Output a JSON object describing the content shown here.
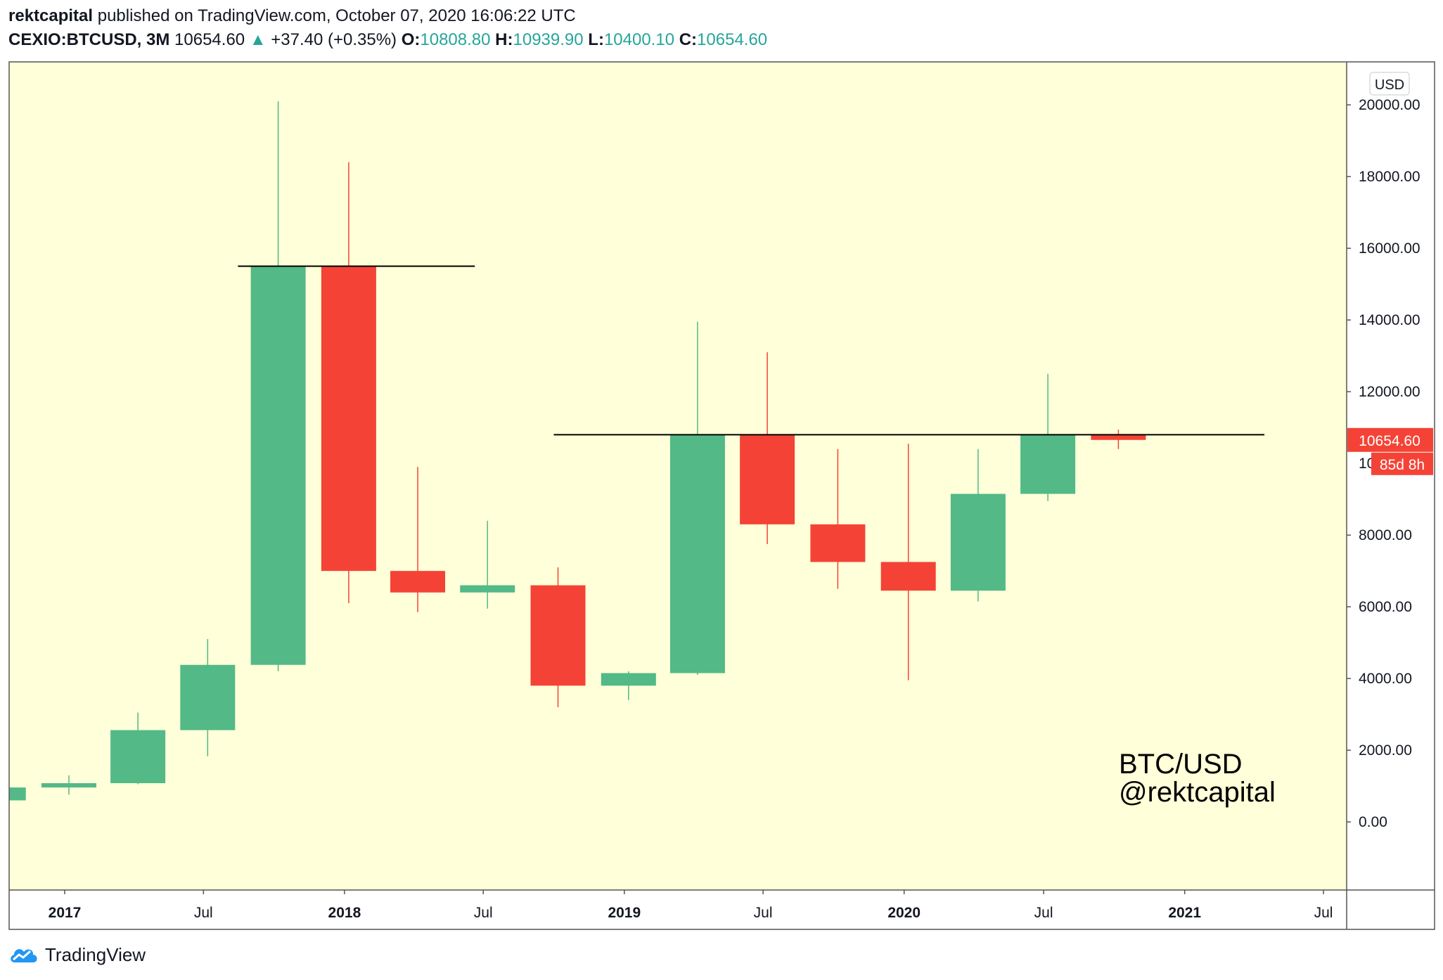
{
  "header": {
    "author": "rektcapital",
    "published_text": "published on TradingView.com, October 07, 2020 16:06:22 UTC",
    "symbol": "CEXIO:BTCUSD, 3M",
    "last": "10654.60",
    "change": "+37.40 (+0.35%)",
    "o_label": "O:",
    "o_value": "10808.80",
    "h_label": "H:",
    "h_value": "10939.90",
    "l_label": "L:",
    "l_value": "10400.10",
    "c_label": "C:",
    "c_value": "10654.60"
  },
  "footer": {
    "brand": "TradingView",
    "logo_icon": "tradingview-cloud-icon"
  },
  "colors": {
    "background": "#ffffd9",
    "up": "#52b987",
    "down": "#f44336",
    "line": "#000000",
    "axis_text": "#131722"
  },
  "chart_data": {
    "type": "candlestick",
    "currency_label": "USD",
    "y_ticks": [
      "20000.00",
      "18000.00",
      "16000.00",
      "14000.00",
      "12000.00",
      "8000.00",
      "6000.00",
      "4000.00",
      "2000.00",
      "0.00"
    ],
    "ylim": [
      -1900,
      21200
    ],
    "x_ticks": [
      {
        "label": "2017",
        "bold": true,
        "date": "2017-01-01"
      },
      {
        "label": "Jul",
        "bold": false,
        "date": "2017-07-01"
      },
      {
        "label": "2018",
        "bold": true,
        "date": "2018-01-01"
      },
      {
        "label": "Jul",
        "bold": false,
        "date": "2018-07-01"
      },
      {
        "label": "2019",
        "bold": true,
        "date": "2019-01-01"
      },
      {
        "label": "Jul",
        "bold": false,
        "date": "2019-07-01"
      },
      {
        "label": "2020",
        "bold": true,
        "date": "2020-01-01"
      },
      {
        "label": "Jul",
        "bold": false,
        "date": "2020-07-01"
      },
      {
        "label": "2021",
        "bold": true,
        "date": "2021-01-01"
      },
      {
        "label": "Jul",
        "bold": false,
        "date": "2021-07-01"
      }
    ],
    "candles": [
      {
        "date": "2016-10-01",
        "open": 600,
        "high": 1000,
        "low": 550,
        "close": 960
      },
      {
        "date": "2017-01-01",
        "open": 960,
        "high": 1300,
        "low": 760,
        "close": 1080
      },
      {
        "date": "2017-04-01",
        "open": 1080,
        "high": 3050,
        "low": 1050,
        "close": 2560
      },
      {
        "date": "2017-07-01",
        "open": 2560,
        "high": 5100,
        "low": 1830,
        "close": 4380
      },
      {
        "date": "2017-10-01",
        "open": 4380,
        "high": 20100,
        "low": 4200,
        "close": 15500
      },
      {
        "date": "2018-01-01",
        "open": 15500,
        "high": 18400,
        "low": 6100,
        "close": 7000
      },
      {
        "date": "2018-04-01",
        "open": 7000,
        "high": 9900,
        "low": 5850,
        "close": 6400
      },
      {
        "date": "2018-07-01",
        "open": 6400,
        "high": 8400,
        "low": 5950,
        "close": 6600
      },
      {
        "date": "2018-10-01",
        "open": 6600,
        "high": 7100,
        "low": 3200,
        "close": 3800
      },
      {
        "date": "2019-01-01",
        "open": 3800,
        "high": 4200,
        "low": 3400,
        "close": 4150
      },
      {
        "date": "2019-04-01",
        "open": 4150,
        "high": 13950,
        "low": 4100,
        "close": 10800
      },
      {
        "date": "2019-07-01",
        "open": 10800,
        "high": 13100,
        "low": 7750,
        "close": 8300
      },
      {
        "date": "2019-10-01",
        "open": 8300,
        "high": 10400,
        "low": 6500,
        "close": 7250
      },
      {
        "date": "2020-01-01",
        "open": 7250,
        "high": 10550,
        "low": 3950,
        "close": 6450
      },
      {
        "date": "2020-04-01",
        "open": 6450,
        "high": 10400,
        "low": 6150,
        "close": 9150
      },
      {
        "date": "2020-07-01",
        "open": 9150,
        "high": 12500,
        "low": 8950,
        "close": 10808.8
      },
      {
        "date": "2020-10-01",
        "open": 10808.8,
        "high": 10939.9,
        "low": 10400.1,
        "close": 10654.6
      }
    ],
    "resistance_lines": [
      {
        "price": 15500,
        "from": "2017-08-15",
        "to": "2018-06-20"
      },
      {
        "price": 10800,
        "from": "2018-10-01",
        "to": "2021-04-15"
      }
    ],
    "price_tag": {
      "value": "10654.60",
      "price": 10654.6,
      "countdown": "85d 8h",
      "hidden_label": "10"
    },
    "annotation": {
      "line1": "BTC/USD",
      "line2": "@rektcapital"
    }
  }
}
